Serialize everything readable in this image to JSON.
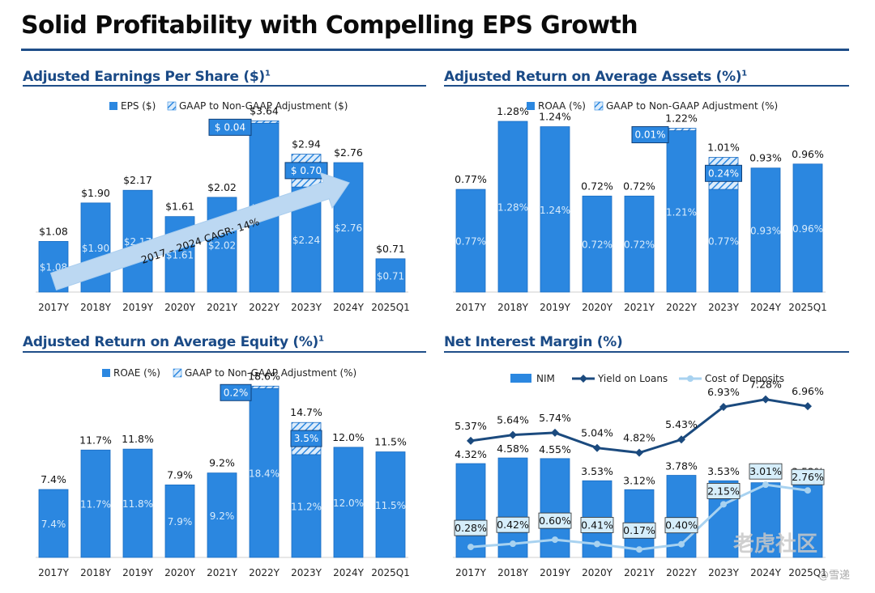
{
  "page": {
    "title": "Solid Profitability with Compelling EPS Growth",
    "watermark": "老虎社区",
    "watermark_sub": "@雪递"
  },
  "colors": {
    "bar": "#2b87e0",
    "bar_edge": "#1a6cc2",
    "title_blue": "#1a4a86",
    "loans_line": "#1b4a7e",
    "deposits_line": "#a8d2f0",
    "arrow": "#bcd8f2"
  },
  "panels": {
    "eps": {
      "title": "Adjusted Earnings Per Share ($)",
      "footnote": "1",
      "legend": [
        "EPS ($)",
        "GAAP to Non-GAAP Adjustment ($)"
      ]
    },
    "roaa": {
      "title": "Adjusted Return on Average Assets (%)",
      "footnote": "1",
      "legend": [
        "ROAA (%)",
        "GAAP to Non-GAAP Adjustment (%)"
      ]
    },
    "roae": {
      "title": "Adjusted Return on Average Equity (%)",
      "footnote": "1",
      "legend": [
        "ROAE (%)",
        "GAAP to Non-GAAP Adjustment (%)"
      ]
    },
    "nim": {
      "title": "Net Interest Margin (%)",
      "footnote": "",
      "legend": [
        "NIM",
        "Yield on Loans",
        "Cost of Deposits"
      ]
    }
  },
  "chart_data": [
    {
      "id": "eps",
      "type": "bar",
      "categories": [
        "2017Y",
        "2018Y",
        "2019Y",
        "2020Y",
        "2021Y",
        "2022Y",
        "2023Y",
        "2024Y",
        "2025Q1"
      ],
      "series": [
        {
          "name": "EPS ($)",
          "values": [
            1.08,
            1.9,
            2.17,
            1.61,
            2.02,
            3.6,
            2.24,
            2.76,
            0.71
          ],
          "labels": [
            "$1.08",
            "$1.90",
            "$2.17",
            "$1.61",
            "$2.02",
            "$3.60",
            "$2.24",
            "$2.76",
            "$0.71"
          ]
        },
        {
          "name": "GAAP to Non-GAAP Adjustment ($)",
          "values": [
            0,
            0,
            0,
            0,
            0,
            0.04,
            0.7,
            0,
            0
          ],
          "labels": [
            "",
            "",
            "",
            "",
            "",
            "$ 0.04",
            "$ 0.70",
            "",
            ""
          ]
        }
      ],
      "totals": [
        1.08,
        1.9,
        2.17,
        1.61,
        2.02,
        3.64,
        2.94,
        2.76,
        0.71
      ],
      "total_labels": [
        "$1.08",
        "$1.90",
        "$2.17",
        "$1.61",
        "$2.02",
        "$3.64",
        "$2.94",
        "$2.76",
        "$0.71"
      ],
      "annotation": "2017 – 2024 CAGR: 14%"
    },
    {
      "id": "roaa",
      "type": "bar",
      "categories": [
        "2017Y",
        "2018Y",
        "2019Y",
        "2020Y",
        "2021Y",
        "2022Y",
        "2023Y",
        "2024Y",
        "2025Q1"
      ],
      "series": [
        {
          "name": "ROAA (%)",
          "values": [
            0.77,
            1.28,
            1.24,
            0.72,
            0.72,
            1.21,
            0.77,
            0.93,
            0.96
          ],
          "labels": [
            "0.77%",
            "1.28%",
            "1.24%",
            "0.72%",
            "0.72%",
            "1.21%",
            "0.77%",
            "0.93%",
            "0.96%"
          ]
        },
        {
          "name": "GAAP to Non-GAAP Adjustment (%)",
          "values": [
            0,
            0,
            0,
            0,
            0,
            0.01,
            0.24,
            0,
            0
          ],
          "labels": [
            "",
            "",
            "",
            "",
            "",
            "0.01%",
            "0.24%",
            "",
            ""
          ]
        }
      ],
      "totals": [
        0.77,
        1.28,
        1.24,
        0.72,
        0.72,
        1.22,
        1.01,
        0.93,
        0.96
      ],
      "total_labels": [
        "0.77%",
        "1.28%",
        "1.24%",
        "0.72%",
        "0.72%",
        "1.22%",
        "1.01%",
        "0.93%",
        "0.96%"
      ]
    },
    {
      "id": "roae",
      "type": "bar",
      "categories": [
        "2017Y",
        "2018Y",
        "2019Y",
        "2020Y",
        "2021Y",
        "2022Y",
        "2023Y",
        "2024Y",
        "2025Q1"
      ],
      "series": [
        {
          "name": "ROAE (%)",
          "values": [
            7.4,
            11.7,
            11.8,
            7.9,
            9.2,
            18.4,
            11.2,
            12.0,
            11.5
          ],
          "labels": [
            "7.4%",
            "11.7%",
            "11.8%",
            "7.9%",
            "9.2%",
            "18.4%",
            "11.2%",
            "12.0%",
            "11.5%"
          ]
        },
        {
          "name": "GAAP to Non-GAAP Adjustment (%)",
          "values": [
            0,
            0,
            0,
            0,
            0,
            0.2,
            3.5,
            0,
            0
          ],
          "labels": [
            "",
            "",
            "",
            "",
            "",
            "0.2%",
            "3.5%",
            "",
            ""
          ]
        }
      ],
      "totals": [
        7.4,
        11.7,
        11.8,
        7.9,
        9.2,
        18.6,
        14.7,
        12.0,
        11.5
      ],
      "total_labels": [
        "7.4%",
        "11.7%",
        "11.8%",
        "7.9%",
        "9.2%",
        "18.6%",
        "14.7%",
        "12.0%",
        "11.5%"
      ]
    },
    {
      "id": "nim",
      "type": "bar",
      "categories": [
        "2017Y",
        "2018Y",
        "2019Y",
        "2020Y",
        "2021Y",
        "2022Y",
        "2023Y",
        "2024Y",
        "2025Q1"
      ],
      "series": [
        {
          "name": "NIM",
          "values": [
            4.32,
            4.58,
            4.55,
            3.53,
            3.12,
            3.78,
            3.53,
            3.44,
            3.52
          ],
          "labels": [
            "4.32%",
            "4.58%",
            "4.55%",
            "3.53%",
            "3.12%",
            "3.78%",
            "3.53%",
            "3.44%",
            "3.52%"
          ]
        },
        {
          "name": "Yield on Loans",
          "type": "line",
          "values": [
            5.37,
            5.64,
            5.74,
            5.04,
            4.82,
            5.43,
            6.93,
            7.28,
            6.96
          ],
          "labels": [
            "5.37%",
            "5.64%",
            "5.74%",
            "5.04%",
            "4.82%",
            "5.43%",
            "6.93%",
            "7.28%",
            "6.96%"
          ]
        },
        {
          "name": "Cost of Deposits",
          "type": "line",
          "values": [
            0.28,
            0.42,
            0.6,
            0.41,
            0.17,
            0.4,
            2.15,
            3.01,
            2.76
          ],
          "labels": [
            "0.28%",
            "0.42%",
            "0.60%",
            "0.41%",
            "0.17%",
            "0.40%",
            "2.15%",
            "3.01%",
            "2.76%"
          ]
        }
      ]
    }
  ]
}
